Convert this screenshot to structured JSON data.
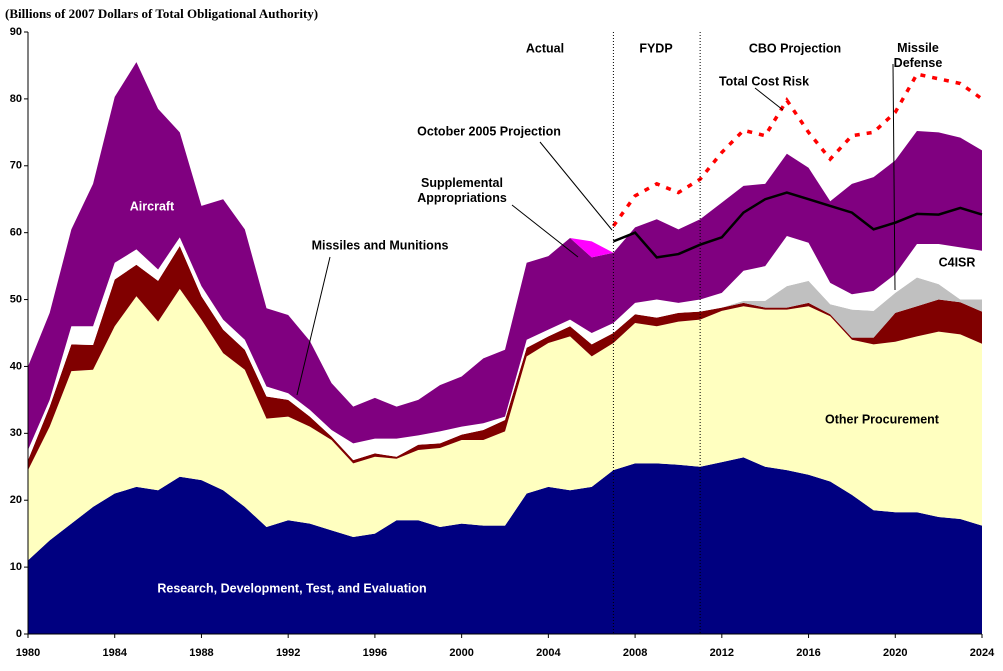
{
  "chart_data": {
    "type": "stacked-area",
    "title": "(Billions of 2007 Dollars of Total Obligational Authority)",
    "x": [
      1980,
      1981,
      1982,
      1983,
      1984,
      1985,
      1986,
      1987,
      1988,
      1989,
      1990,
      1991,
      1992,
      1993,
      1994,
      1995,
      1996,
      1997,
      1998,
      1999,
      2000,
      2001,
      2002,
      2003,
      2004,
      2005,
      2006,
      2007,
      2008,
      2009,
      2010,
      2011,
      2012,
      2013,
      2014,
      2015,
      2016,
      2017,
      2018,
      2019,
      2020,
      2021,
      2022,
      2023,
      2024
    ],
    "xlim": [
      1980,
      2024
    ],
    "xticks": [
      1980,
      1984,
      1988,
      1992,
      1996,
      2000,
      2004,
      2008,
      2012,
      2016,
      2020,
      2024
    ],
    "ylim": [
      0,
      90
    ],
    "yticks": [
      0,
      10,
      20,
      30,
      40,
      50,
      60,
      70,
      80,
      90
    ],
    "series": [
      {
        "name": "Research, Development, Test, and Evaluation",
        "color": "#000080",
        "values": [
          11,
          14,
          16.5,
          19,
          21,
          22,
          21.5,
          23.5,
          23,
          21.5,
          19,
          16,
          17,
          16.5,
          15.5,
          14.5,
          15,
          17,
          17,
          16,
          16.5,
          16.2,
          16.2,
          21,
          22,
          21.5,
          22,
          24.5,
          25.5,
          25.5,
          25.3,
          25,
          25.7,
          26.4,
          25,
          24.5,
          23.8,
          22.8,
          20.8,
          18.5,
          18.2,
          18.2,
          17.5,
          17.2,
          16.2
        ]
      },
      {
        "name": "Other Procurement",
        "color": "#ffffc0",
        "values": [
          13.5,
          17,
          22.8,
          20.5,
          25,
          28.5,
          25.2,
          28.1,
          24,
          20.5,
          20.5,
          16.2,
          15.5,
          14.5,
          13.5,
          11,
          11.5,
          9.2,
          10.5,
          11.8,
          12.5,
          12.8,
          14.1,
          20.5,
          21.5,
          23,
          19.5,
          19,
          21,
          20.5,
          21.4,
          22,
          22.6,
          22.6,
          23.5,
          24,
          25.2,
          24.7,
          23.2,
          24.8,
          25.5,
          26.3,
          27.7,
          27.6,
          27.2
        ]
      },
      {
        "name": "Missiles and Munitions",
        "color": "#800000",
        "values": [
          1.5,
          3,
          4,
          3.7,
          7,
          4.7,
          6.1,
          6.4,
          3.5,
          3.5,
          3,
          3.3,
          2.5,
          1.5,
          0.5,
          0.5,
          0.5,
          0.3,
          0.8,
          0.7,
          0.8,
          1.5,
          1.7,
          1.3,
          1,
          1.5,
          1.8,
          1.5,
          1.3,
          1.3,
          1.3,
          1.2,
          0.5,
          0.5,
          0.3,
          0.3,
          0.5,
          0.3,
          0.3,
          1,
          4.3,
          4.5,
          4.8,
          4.8,
          4.8
        ]
      },
      {
        "name": "Missile Defense",
        "color": "#c0c0c0",
        "values": [
          0,
          0,
          0,
          0,
          0,
          0,
          0,
          0,
          0,
          0,
          0,
          0,
          0,
          0,
          0,
          0,
          0,
          0,
          0,
          0,
          0,
          0,
          0,
          0,
          0,
          0,
          0,
          0,
          0,
          0,
          0,
          0,
          0,
          0.3,
          1,
          3.2,
          3.3,
          1.5,
          4.2,
          4,
          3,
          4.3,
          2.3,
          0.4,
          1.8
        ]
      },
      {
        "name": "C4ISR",
        "color": "#ffffff",
        "values": [
          1.5,
          1,
          2.7,
          2.8,
          2.5,
          2.3,
          1.7,
          1.3,
          1.5,
          1.5,
          1.5,
          1.5,
          1,
          1,
          1,
          2.5,
          2.2,
          2.7,
          1.4,
          1.8,
          1.2,
          1,
          0.5,
          1.2,
          1,
          1,
          1.7,
          1.5,
          1.7,
          2.7,
          1.5,
          1.8,
          2.2,
          4.5,
          5.2,
          7.5,
          5.7,
          3.2,
          2.3,
          3,
          2.8,
          5,
          6,
          7.8,
          7.3
        ]
      },
      {
        "name": "Aircraft",
        "color": "#800080",
        "values": [
          12.5,
          13,
          14.5,
          21.3,
          24.8,
          28,
          24,
          15.7,
          12,
          18,
          16.5,
          11.7,
          11.7,
          10.3,
          7,
          5.5,
          6.1,
          4.8,
          5.3,
          6.9,
          7.5,
          9.7,
          10,
          11.5,
          11,
          12.2,
          11.3,
          10.5,
          11.3,
          12,
          11,
          12,
          13.5,
          12.7,
          12.3,
          12.3,
          11.2,
          12.2,
          16.5,
          17,
          17,
          16.9,
          16.7,
          16.4,
          15
        ]
      },
      {
        "name": "Supplemental Appropriations",
        "color": "#ff00ff",
        "values": [
          0,
          0,
          0,
          0,
          0,
          0,
          0,
          0,
          0,
          0,
          0,
          0,
          0,
          0,
          0,
          0,
          0,
          0,
          0,
          0,
          0,
          0,
          0,
          0,
          0,
          0,
          2.4,
          0,
          0,
          0,
          0,
          0,
          0,
          0,
          0,
          0,
          0,
          0,
          0,
          0,
          0,
          0,
          0,
          0,
          0
        ]
      }
    ],
    "lines": [
      {
        "name": "October 2005 Projection",
        "color": "#000000",
        "values": [
          null,
          null,
          null,
          null,
          null,
          null,
          null,
          null,
          null,
          null,
          null,
          null,
          null,
          null,
          null,
          null,
          null,
          null,
          null,
          null,
          null,
          null,
          null,
          null,
          null,
          null,
          null,
          58.7,
          60,
          56.3,
          56.8,
          58.2,
          59.3,
          63,
          65,
          66,
          65,
          64,
          63,
          60.5,
          61.5,
          62.8,
          62.7,
          63.7,
          62.7
        ]
      },
      {
        "name": "Total Cost Risk",
        "color": "#ff0000",
        "dash": "dotted",
        "values": [
          null,
          null,
          null,
          null,
          null,
          null,
          null,
          null,
          null,
          null,
          null,
          null,
          null,
          null,
          null,
          null,
          null,
          null,
          null,
          null,
          null,
          null,
          null,
          null,
          null,
          null,
          null,
          61,
          65.5,
          67.3,
          66,
          68,
          72,
          75.3,
          74.5,
          79.8,
          75,
          71,
          74.5,
          75,
          78,
          83.7,
          83,
          82.3,
          80
        ]
      }
    ],
    "dividers": [
      2007,
      2011
    ],
    "regions": [
      "Actual",
      "FYDP",
      "CBO Projection"
    ]
  }
}
